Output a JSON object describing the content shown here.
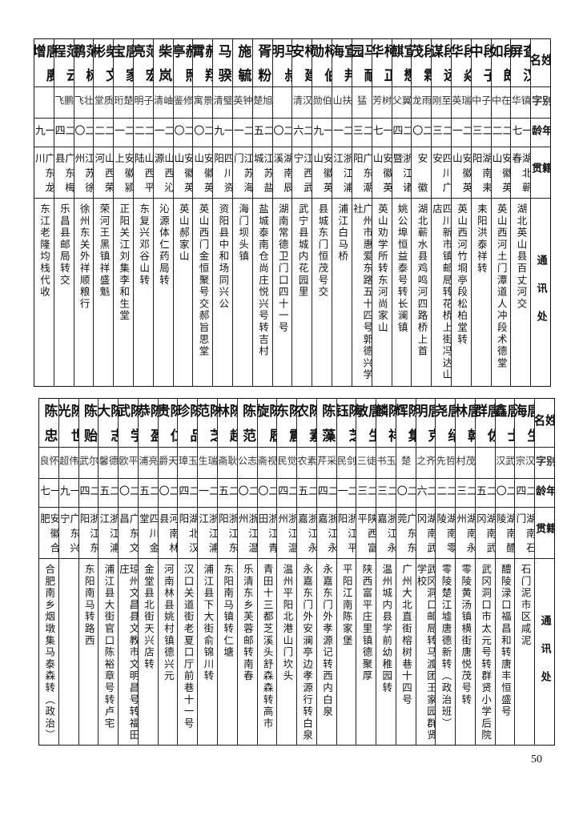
{
  "headers": {
    "name": "姓名",
    "alias": "别字",
    "age": "年龄",
    "native": "籍贯",
    "address": "通讯处"
  },
  "upper_table": [
    {
      "name": "查汉屏",
      "alias": "镇华",
      "age": "一七",
      "native": "湖北蕲春",
      "address": "湖北英山县百丈河交"
    },
    {
      "name": "段朗如",
      "alias": "在中",
      "age": "二二",
      "native": "安徽英山",
      "address": "英山西河土门潭道人冲段术德堂"
    },
    {
      "name": "段子中",
      "alias": "子中",
      "age": "二三",
      "native": "湖南耒阳",
      "address": "耒阳洪泰祥转"
    },
    {
      "name": "段焱华",
      "alias": "瑞英",
      "age": "二一",
      "native": "安徽英山",
      "address": "英山西河竹埛亭段松柏堂转"
    },
    {
      "name": "段远谋",
      "alias": "至刚",
      "age": "二三",
      "native": "四川广安",
      "address": "四川新市镇邮局转花桥上街冯达山店"
    },
    {
      "name": "段霖茂",
      "alias": "雨龙",
      "age": "二〇",
      "native": "安徽",
      "address": "湖北蕲水县鸡鸣河四路桥上首"
    },
    {
      "name": "宣懋麒",
      "alias": "翼父",
      "age": "二四",
      "native": "浙江诸暨",
      "address": "姚公埠恒益泰号转长澜镇"
    },
    {
      "name": "柯正华",
      "alias": "树芳",
      "age": "一七",
      "native": "安徽英山",
      "address": "英山劝学所转东河尚家山"
    },
    {
      "name": "马耐园",
      "alias": "猛",
      "age": "二三",
      "native": "广东潮阳",
      "address": "广州市惠爱东路五十四号郭德兴学社"
    },
    {
      "name": "宣邦海",
      "alias": "扶山",
      "age": "二一",
      "native": "浙江浦江",
      "address": "浦江白马桥"
    },
    {
      "name": "柯伯勋",
      "alias": "伯勋",
      "age": "一九",
      "native": "安徽英山",
      "address": "县城东门恒茂号交"
    },
    {
      "name": "柯建安",
      "alias": "汉清",
      "age": "二六",
      "native": "江西武宁",
      "address": "武宁县城内花园里"
    },
    {
      "name": "马叔明",
      "alias": "",
      "age": "二〇",
      "native": "湖南辰溪",
      "address": "湖南常德卫门口四十一号"
    },
    {
      "name": "胥粉",
      "alias": "旭楚",
      "age": "二五",
      "native": "江苏盐城",
      "address": "盐城泰南仓尚庄悦兴号转吉村"
    },
    {
      "name": "施毓",
      "alias": "钟英",
      "age": "二一",
      "native": "江苏海门",
      "address": "海门坝头镇"
    },
    {
      "name": "马骙",
      "alias": "璧清",
      "age": "一九",
      "native": "四川资阳",
      "address": "资阳县中和场同兴公"
    },
    {
      "name": "郝翔霄",
      "alias": "景寓",
      "age": "二〇",
      "native": "安徽英山",
      "address": "英山西门金恒聚号交郝旨思堂"
    },
    {
      "name": "郝照亭",
      "alias": "修鉴",
      "age": "二〇",
      "native": "安徽英山",
      "address": "英山郝家山"
    },
    {
      "name": "柴岚",
      "alias": "岫清",
      "age": "二一",
      "native": "山西沁源",
      "address": "沁源体仁药局转"
    },
    {
      "name": "范宏亮",
      "alias": "子明",
      "age": "二二",
      "native": "山西平陆",
      "address": "东复兴邓谷山转"
    },
    {
      "name": "唐家宝",
      "alias": "楚珩",
      "age": "二一",
      "native": "安徽颍上",
      "address": "正阳关江刘集李和生堂"
    },
    {
      "name": "柴文彬",
      "alias": "质堂",
      "age": "二二",
      "native": "山西荣河",
      "address": "荣河王黑镇祥盛魁"
    },
    {
      "name": "范树鹏",
      "alias": "壮飞",
      "age": "二〇",
      "native": "江苏徐州",
      "address": "徐州东关外祥顺粮行"
    },
    {
      "name": "范云程",
      "alias": "鹏飞",
      "age": "二四",
      "native": "广东梅县",
      "address": "乐昌县邮局转交"
    },
    {
      "name": "唐赓增",
      "alias": "",
      "age": "一九",
      "native": "广东龙川",
      "address": "东江老隆均栈代收"
    }
  ],
  "lower_table": [
    {
      "name": "唐生海",
      "alias": "汉宗",
      "age": "二四",
      "native": "湖南石门",
      "address": "石门泥市区咸泥"
    },
    {
      "name": "唐士鑫",
      "alias": "武汉",
      "age": "二〇",
      "native": "湖南醴陵",
      "address": "醴陵渌口福昌和转唐丰恒盛号"
    },
    {
      "name": "唐佐群",
      "alias": "",
      "age": "二五",
      "native": "湖南武冈",
      "address": "武冈洞口市太元号转群贤小学后院"
    },
    {
      "name": "唐幹林",
      "alias": "茂村",
      "age": "二三",
      "native": "湖南永州",
      "address": "零陵黄汤镇横街唐悦茂号转"
    },
    {
      "name": "唐绍尧",
      "alias": "哲先",
      "age": "二二",
      "native": "湖南零陵",
      "address": "零陵楚江墟唐德新转（政治班）"
    },
    {
      "name": "唐克明",
      "alias": "齐之",
      "age": "二六",
      "native": "湖南武冈",
      "address": "武冈洞口邮局转马渡团王家园群贤学校"
    },
    {
      "name": "陈集辉",
      "alias": "楚",
      "age": "二〇",
      "native": "广东东莞",
      "address": "广州大北直街榕树巷十四号"
    },
    {
      "name": "陈祥麟",
      "alias": "玉书",
      "age": "二三",
      "native": "浙江永嘉",
      "address": "温州城内县学前幼稚园转"
    },
    {
      "name": "唐生敏",
      "alias": "徒三",
      "age": "二三",
      "native": "陕西富平",
      "address": "陕西富平庄里镇德聚厚"
    },
    {
      "name": "陈芝钰",
      "alias": "剑民",
      "age": "二一",
      "native": "浙江平阳",
      "address": "平阳江南陈家堡"
    },
    {
      "name": "陈藻",
      "alias": "采芹",
      "age": "二四",
      "native": "浙江永嘉",
      "address": "永嘉东门外孝源记转西内白泉"
    },
    {
      "name": "陈素农",
      "alias": "素农",
      "age": "二五",
      "native": "浙江永嘉",
      "address": "永嘉东门外安澜亭边孝源行转白泉"
    },
    {
      "name": "陈震东",
      "alias": "觉民",
      "age": "二四",
      "native": "浙江温州",
      "address": "温州平阳北港山门坎头"
    },
    {
      "name": "陈履旋",
      "alias": "视斋",
      "age": "二〇",
      "native": "浙江青田",
      "address": "青田十三都芝溪头舒森森转高市"
    },
    {
      "name": "陈范",
      "alias": "志公",
      "age": "二〇",
      "native": "浙江温州",
      "address": "乐清东乡芙蓉邮转南春"
    },
    {
      "name": "陈超林",
      "alias": "耿斋",
      "age": "二五",
      "native": "浙江东阳",
      "address": "东阳南马镇转仁塘"
    },
    {
      "name": "陈芝范",
      "alias": "瑞生",
      "age": "二一",
      "native": "浙江浦江",
      "address": "浦江县下大街俞锦川转"
    },
    {
      "name": "陈品珍",
      "alias": "玉璋",
      "age": "二四",
      "native": "湖北汉阳",
      "address": "汉口关道街老夏口厅前巷十一号"
    },
    {
      "name": "陈仁贵",
      "alias": "天爵",
      "age": "二〇",
      "native": "河南林县",
      "address": "河南林县姚村镇德兴元"
    },
    {
      "name": "陈盈恭",
      "alias": "亮浦",
      "age": "二五",
      "native": "四川金堂",
      "address": "金堂县北街天兴店转"
    },
    {
      "name": "陈学武",
      "alias": "平欧",
      "age": "二〇",
      "native": "广东文昌",
      "address": "琼州文昌县文教市文明昌号转福田庄"
    },
    {
      "name": "陈志大",
      "alias": "德馨",
      "age": "二五",
      "native": "浙江浦江",
      "address": "浦江县大街官口陈裕章号转卢宅"
    },
    {
      "name": "陈贻",
      "alias": "尔武",
      "age": "二四",
      "native": "浙江东阳",
      "address": "东阳南马转路西"
    },
    {
      "name": "陈世光",
      "alias": "伟超",
      "age": "一九",
      "native": "广东兴宁",
      "address": ""
    },
    {
      "name": "陈忠",
      "alias": "怀良",
      "age": "一七",
      "native": "安徽合肥",
      "address": "合肥南乡烟墩集马泰森转（政治）"
    }
  ],
  "page_number": "50"
}
